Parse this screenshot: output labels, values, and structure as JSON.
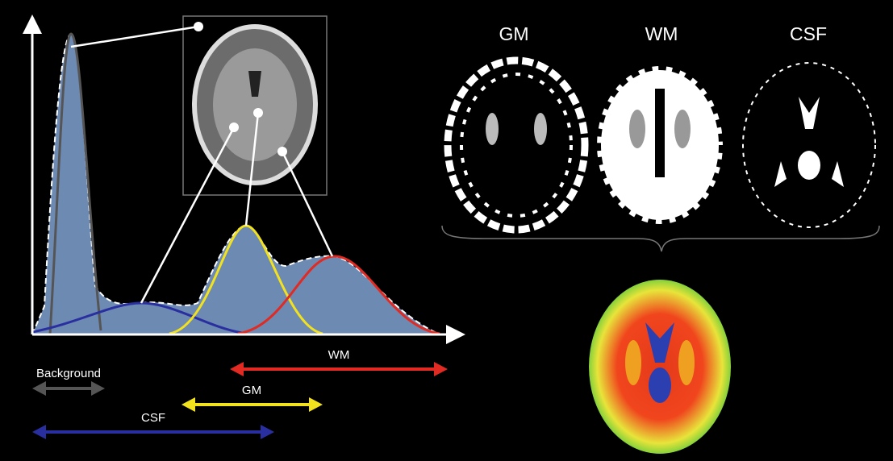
{
  "intensity_ranges": {
    "background": "Background",
    "wm": "WM",
    "gm": "GM",
    "csf": "CSF"
  },
  "tissue_maps": [
    "GM",
    "WM",
    "CSF"
  ]
}
